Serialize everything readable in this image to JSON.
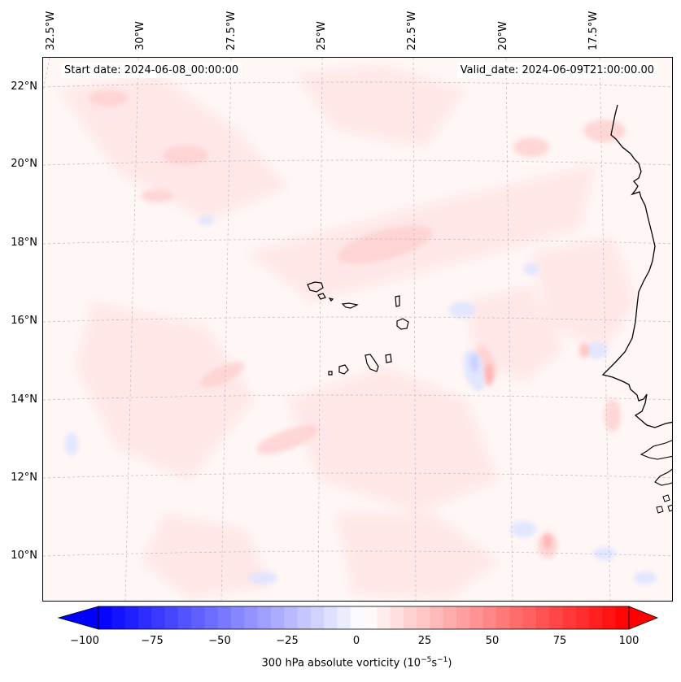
{
  "header": {
    "start_date": "Start date: 2024-06-08_00:00:00",
    "valid_date": "Valid_date: 2024-06-09T21:00:00.00"
  },
  "map": {
    "longitude_labels": [
      "32.5°W",
      "30°W",
      "27.5°W",
      "25°W",
      "22.5°W",
      "20°W",
      "17.5°W"
    ],
    "latitude_labels": [
      "22°N",
      "20°N",
      "18°N",
      "16°N",
      "14°N",
      "12°N",
      "10°N"
    ],
    "gridlines": true,
    "gridline_style": "dashed",
    "coastline_color": "#000000",
    "field": "vorticity"
  },
  "colorbar": {
    "label_text": "300 hPa absolute vorticity (10",
    "label_exp1": "−5",
    "label_mid": "s",
    "label_exp2": "−1",
    "label_close": ")",
    "ticks": [
      "−100",
      "−75",
      "−50",
      "−25",
      "0",
      "25",
      "50",
      "75",
      "100"
    ],
    "min": -100,
    "max": 100,
    "colormap": "bwr",
    "extend": "both",
    "low_color": "#0000ff",
    "mid_color": "#ffffff",
    "high_color": "#ff0000"
  }
}
